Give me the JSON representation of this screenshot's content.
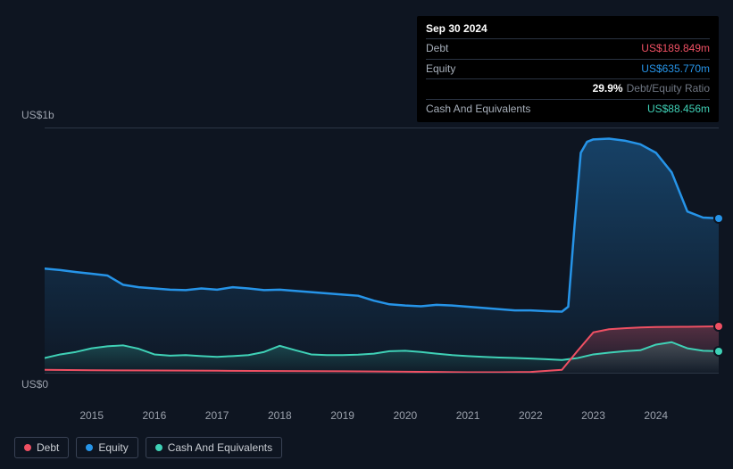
{
  "background_color": "#0e1521",
  "axis_label_color": "#9ba1ac",
  "grid_color": "#2c3645",
  "tooltip": {
    "date": "Sep 30 2024",
    "rows": [
      {
        "label": "Debt",
        "value": "US$189.849m",
        "color": "#ef5063"
      },
      {
        "label": "Equity",
        "value": "US$635.770m",
        "color": "#2694e8"
      },
      {
        "label_blank": true,
        "pct": "29.9%",
        "ratio_label": "Debt/Equity Ratio",
        "color": "#ffffff"
      },
      {
        "label": "Cash And Equivalents",
        "value": "US$88.456m",
        "color": "#3fd1b6"
      }
    ]
  },
  "chart": {
    "type": "area",
    "y_axis": {
      "top_label": "US$1b",
      "bottom_label": "US$0",
      "ylim": [
        0,
        1000
      ],
      "unit": "US$m"
    },
    "x_axis": {
      "ticks": [
        "2015",
        "2016",
        "2017",
        "2018",
        "2019",
        "2020",
        "2021",
        "2022",
        "2023",
        "2024"
      ],
      "x_start": 2014.25,
      "x_end": 2025.0
    },
    "series": {
      "equity": {
        "label": "Equity",
        "stroke": "#2694e8",
        "fill_top": "rgba(38,148,232,0.35)",
        "fill_bottom": "rgba(38,148,232,0.02)",
        "line_width": 2.5,
        "data": [
          [
            2014.25,
            426
          ],
          [
            2014.5,
            420
          ],
          [
            2014.75,
            412
          ],
          [
            2015.0,
            405
          ],
          [
            2015.25,
            398
          ],
          [
            2015.5,
            360
          ],
          [
            2015.75,
            350
          ],
          [
            2016.0,
            345
          ],
          [
            2016.25,
            340
          ],
          [
            2016.5,
            338
          ],
          [
            2016.75,
            345
          ],
          [
            2017.0,
            340
          ],
          [
            2017.25,
            350
          ],
          [
            2017.5,
            345
          ],
          [
            2017.75,
            338
          ],
          [
            2018.0,
            340
          ],
          [
            2018.25,
            335
          ],
          [
            2018.5,
            330
          ],
          [
            2018.75,
            325
          ],
          [
            2019.0,
            320
          ],
          [
            2019.25,
            315
          ],
          [
            2019.5,
            295
          ],
          [
            2019.75,
            280
          ],
          [
            2020.0,
            275
          ],
          [
            2020.25,
            272
          ],
          [
            2020.5,
            278
          ],
          [
            2020.75,
            275
          ],
          [
            2021.0,
            270
          ],
          [
            2021.25,
            265
          ],
          [
            2021.5,
            260
          ],
          [
            2021.75,
            255
          ],
          [
            2022.0,
            255
          ],
          [
            2022.25,
            252
          ],
          [
            2022.5,
            250
          ],
          [
            2022.6,
            270
          ],
          [
            2022.7,
            600
          ],
          [
            2022.8,
            900
          ],
          [
            2022.9,
            945
          ],
          [
            2023.0,
            955
          ],
          [
            2023.25,
            958
          ],
          [
            2023.5,
            950
          ],
          [
            2023.75,
            935
          ],
          [
            2024.0,
            900
          ],
          [
            2024.25,
            820
          ],
          [
            2024.5,
            660
          ],
          [
            2024.75,
            635
          ],
          [
            2025.0,
            632
          ]
        ]
      },
      "debt": {
        "label": "Debt",
        "stroke": "#ef5063",
        "fill_top": "rgba(239,80,99,0.30)",
        "fill_bottom": "rgba(239,80,99,0.02)",
        "line_width": 2,
        "data": [
          [
            2014.25,
            12
          ],
          [
            2015.0,
            10
          ],
          [
            2016.0,
            9
          ],
          [
            2017.0,
            8
          ],
          [
            2018.0,
            7
          ],
          [
            2019.0,
            6
          ],
          [
            2019.5,
            5
          ],
          [
            2020.0,
            4
          ],
          [
            2020.5,
            3
          ],
          [
            2021.0,
            2
          ],
          [
            2021.5,
            2
          ],
          [
            2022.0,
            3
          ],
          [
            2022.5,
            12
          ],
          [
            2022.75,
            90
          ],
          [
            2023.0,
            165
          ],
          [
            2023.25,
            178
          ],
          [
            2023.5,
            182
          ],
          [
            2023.75,
            185
          ],
          [
            2024.0,
            187
          ],
          [
            2024.5,
            188
          ],
          [
            2025.0,
            190
          ]
        ]
      },
      "cash": {
        "label": "Cash And Equivalents",
        "stroke": "#3fd1b6",
        "fill_top": "rgba(63,209,182,0.25)",
        "fill_bottom": "rgba(63,209,182,0.02)",
        "line_width": 2,
        "data": [
          [
            2014.25,
            60
          ],
          [
            2014.5,
            75
          ],
          [
            2014.75,
            85
          ],
          [
            2015.0,
            100
          ],
          [
            2015.25,
            108
          ],
          [
            2015.5,
            112
          ],
          [
            2015.75,
            98
          ],
          [
            2016.0,
            75
          ],
          [
            2016.25,
            70
          ],
          [
            2016.5,
            72
          ],
          [
            2016.75,
            68
          ],
          [
            2017.0,
            65
          ],
          [
            2017.25,
            68
          ],
          [
            2017.5,
            72
          ],
          [
            2017.75,
            85
          ],
          [
            2018.0,
            110
          ],
          [
            2018.25,
            92
          ],
          [
            2018.5,
            75
          ],
          [
            2018.75,
            72
          ],
          [
            2019.0,
            72
          ],
          [
            2019.25,
            74
          ],
          [
            2019.5,
            78
          ],
          [
            2019.75,
            88
          ],
          [
            2020.0,
            90
          ],
          [
            2020.25,
            85
          ],
          [
            2020.5,
            78
          ],
          [
            2020.75,
            72
          ],
          [
            2021.0,
            68
          ],
          [
            2021.25,
            65
          ],
          [
            2021.5,
            62
          ],
          [
            2021.75,
            60
          ],
          [
            2022.0,
            58
          ],
          [
            2022.25,
            55
          ],
          [
            2022.5,
            52
          ],
          [
            2022.75,
            60
          ],
          [
            2023.0,
            75
          ],
          [
            2023.25,
            82
          ],
          [
            2023.5,
            88
          ],
          [
            2023.75,
            92
          ],
          [
            2024.0,
            115
          ],
          [
            2024.25,
            125
          ],
          [
            2024.5,
            100
          ],
          [
            2024.75,
            90
          ],
          [
            2025.0,
            88
          ]
        ]
      }
    },
    "end_markers": [
      {
        "series": "equity",
        "x": 2025.0,
        "y": 632,
        "color": "#2694e8"
      },
      {
        "series": "debt",
        "x": 2025.0,
        "y": 190,
        "color": "#ef5063"
      },
      {
        "series": "cash",
        "x": 2025.0,
        "y": 88,
        "color": "#3fd1b6"
      }
    ]
  },
  "legend": [
    {
      "key": "debt",
      "label": "Debt",
      "color": "#ef5063"
    },
    {
      "key": "equity",
      "label": "Equity",
      "color": "#2694e8"
    },
    {
      "key": "cash",
      "label": "Cash And Equivalents",
      "color": "#3fd1b6"
    }
  ]
}
